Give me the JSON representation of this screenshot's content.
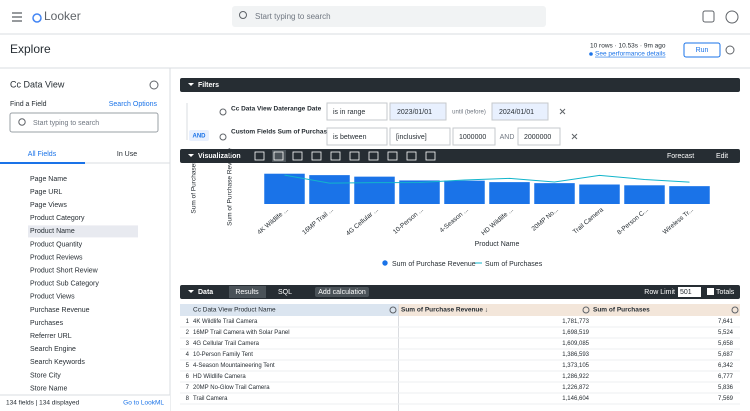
{
  "top_bar": {
    "logo": "Looker",
    "search_placeholder": "Start typing to search"
  },
  "header": {
    "title": "Explore",
    "status": "10 rows · 10.53s · 9m ago",
    "performance_link": "See performance details",
    "run": "Run"
  },
  "field_panel": {
    "title": "Cc Data View",
    "find_label": "Find a Field",
    "search_options": "Search Options",
    "search_placeholder": "Start typing to search",
    "tabs": [
      "All Fields",
      "In Use"
    ],
    "fields": [
      "Page Name",
      "Page URL",
      "Page Views",
      "Product Category",
      "Product Name",
      "Product Quantity",
      "Product Reviews",
      "Product Short Review",
      "Product Sub Category",
      "Product Views",
      "Purchase Revenue",
      "Purchases",
      "Referrer URL",
      "Search Engine",
      "Search Keywords",
      "Store City",
      "Store Name"
    ],
    "selected_field": 4,
    "footer_count": "134 fields | 134 displayed",
    "lookml_link": "Go to LookML"
  },
  "filters": {
    "title": "Filters",
    "conjunction": "AND",
    "rows": [
      {
        "field": "Cc Data View Daterange Date",
        "operator": "is in range",
        "from": "2023/01/01",
        "separator": "until (before)",
        "to": "2024/01/01"
      },
      {
        "field": "Custom Fields Sum of Purchase Revenue",
        "operator": "is between",
        "mode": "[inclusive]",
        "from": "1000000",
        "separator": "AND",
        "to": "2000000"
      }
    ]
  },
  "visualization": {
    "title": "Visualization",
    "forecast": "Forecast",
    "edit": "Edit"
  },
  "chart_data": {
    "type": "bar_line",
    "categories": [
      "4K Wildlife ...",
      "16MP Trail ...",
      "4G Cellular ...",
      "10-Person ...",
      "4-Season ...",
      "HD Wildlife ...",
      "20MP No...",
      "Trail Camera",
      "8-Person C...",
      "Wireless Tr..."
    ],
    "x_label": "Product Name",
    "y_label": "Sum of Purchase Revenue",
    "y2_label": "Sum of Purchases",
    "ylim": [
      0,
      2000000
    ],
    "y2lim": [
      0,
      9000
    ],
    "series": [
      {
        "name": "Sum of Purchase Revenue",
        "type": "bar",
        "color": "#1a73e8",
        "values": [
          1781773,
          1698519,
          1609085,
          1386593,
          1373105,
          1286922,
          1226872,
          1146604,
          1100000,
          1050000
        ]
      },
      {
        "name": "Sum of Purchases",
        "type": "line",
        "axis": "y2",
        "color": "#12b5cb",
        "values": [
          7641,
          5524,
          5658,
          5687,
          6342,
          6777,
          5836,
          7569,
          6500,
          5800
        ]
      }
    ]
  },
  "data_panel": {
    "title": "Data",
    "tabs": [
      "Results",
      "SQL"
    ],
    "add_calculation": "Add calculation",
    "row_limit_label": "Row Limit",
    "row_limit": "501",
    "totals": "Totals"
  },
  "table": {
    "columns": [
      "Cc Data View Product Name",
      "Sum of Purchase Revenue ↓",
      "Sum of Purchases"
    ],
    "rows": [
      [
        "1",
        "4K Wildlife Trail Camera",
        "1,781,773",
        "7,641"
      ],
      [
        "2",
        "16MP Trail Camera with Solar Panel",
        "1,698,519",
        "5,524"
      ],
      [
        "3",
        "4G Cellular Trail Camera",
        "1,609,085",
        "5,658"
      ],
      [
        "4",
        "10-Person Family Tent",
        "1,386,593",
        "5,687"
      ],
      [
        "5",
        "4-Season Mountaineering Tent",
        "1,373,105",
        "6,342"
      ],
      [
        "6",
        "HD Wildlife Camera",
        "1,286,922",
        "6,777"
      ],
      [
        "7",
        "20MP No-Glow Trail Camera",
        "1,226,872",
        "5,836"
      ],
      [
        "8",
        "Trail Camera",
        "1,146,604",
        "7,569"
      ]
    ]
  }
}
